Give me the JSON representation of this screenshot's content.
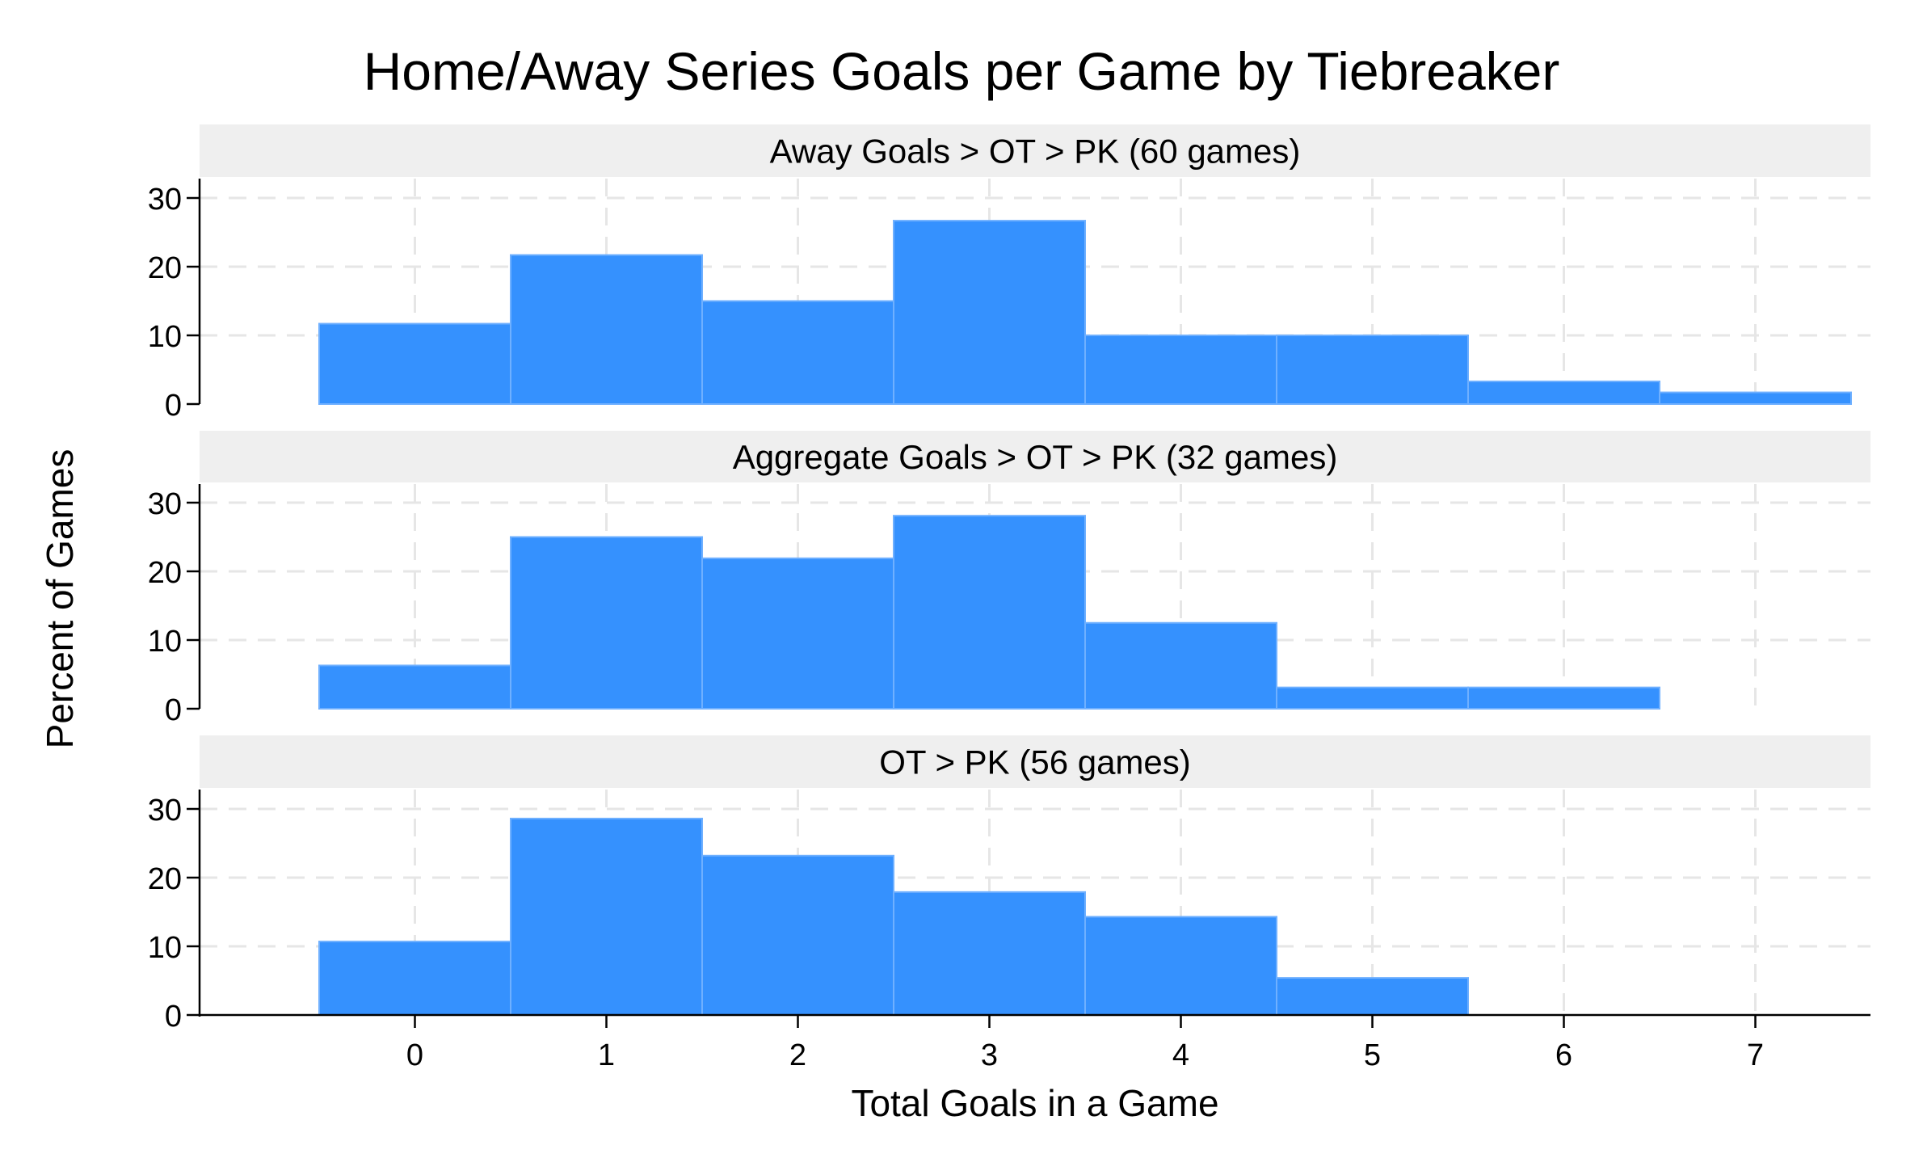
{
  "chart_data": {
    "type": "bar",
    "title": "Home/Away Series Goals per Game by Tiebreaker",
    "xlabel": "Total Goals in a Game",
    "ylabel": "Percent of Games",
    "x": [
      0,
      1,
      2,
      3,
      4,
      5,
      6,
      7
    ],
    "x_ticks": [
      "0",
      "1",
      "2",
      "3",
      "4",
      "5",
      "6",
      "7"
    ],
    "y_ticks": [
      "0",
      "10",
      "20",
      "30"
    ],
    "ylim": [
      0,
      33
    ],
    "bar_color": "#3591FE",
    "grid": true,
    "panels": [
      {
        "name": "Away Goals > OT > PK (60 games)",
        "values": [
          11.7,
          21.7,
          15.0,
          26.7,
          10.0,
          10.0,
          3.3,
          1.7
        ]
      },
      {
        "name": "Aggregate Goals > OT > PK (32 games)",
        "values": [
          6.3,
          25.0,
          21.9,
          28.1,
          12.5,
          3.1,
          3.1,
          0
        ]
      },
      {
        "name": "OT > PK (56 games)",
        "values": [
          10.7,
          28.6,
          23.2,
          17.9,
          14.3,
          5.4,
          0,
          0
        ]
      }
    ]
  }
}
